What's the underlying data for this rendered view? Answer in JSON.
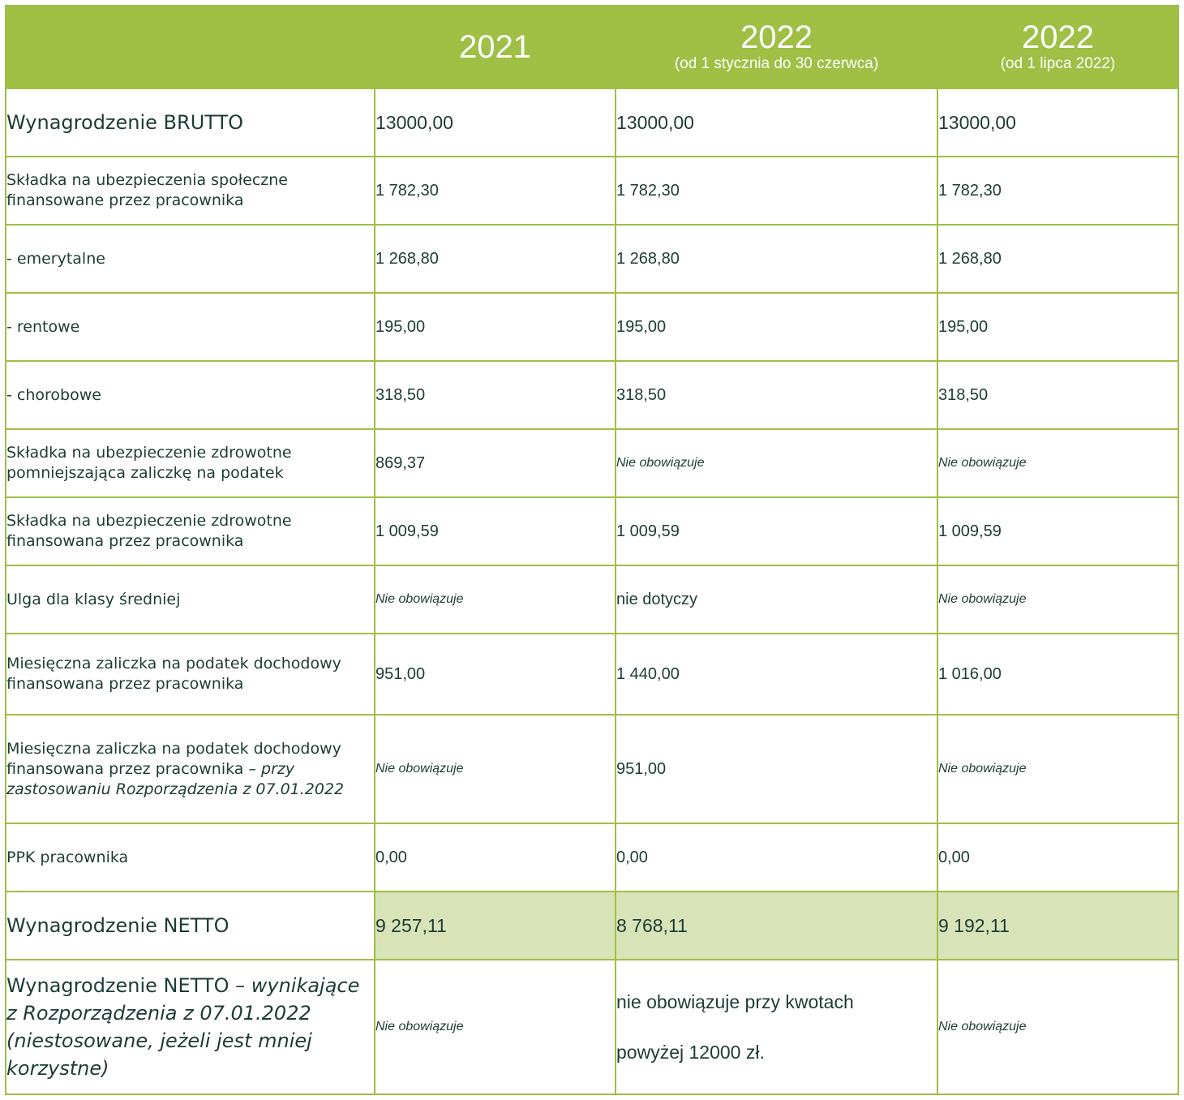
{
  "header": {
    "col1": {
      "year": "2021"
    },
    "col2": {
      "year": "2022",
      "note": "(od 1 stycznia do 30 czerwca)"
    },
    "col3": {
      "year": "2022",
      "note": "(od 1 lipca 2022)"
    }
  },
  "rows": {
    "brutto": {
      "label": "Wynagrodzenie BRUTTO",
      "v1": "13000,00",
      "v2": "13000,00",
      "v3": "13000,00"
    },
    "spoleczne": {
      "label": "Składka na ubezpieczenia społeczne finansowane przez pracownika",
      "v1": "1 782,30",
      "v2": "1 782,30",
      "v3": "1 782,30"
    },
    "emerytalne": {
      "label": "- emerytalne",
      "v1": "1 268,80",
      "v2": "1 268,80",
      "v3": "1 268,80"
    },
    "rentowe": {
      "label": "- rentowe",
      "v1": "195,00",
      "v2": "195,00",
      "v3": "195,00"
    },
    "chorobowe": {
      "label": "- chorobowe",
      "v1": "318,50",
      "v2": "318,50",
      "v3": "318,50"
    },
    "zdrowotne_pomn": {
      "label": "Składka na ubezpieczenie zdrowotne pomniejszająca zaliczkę na podatek",
      "v1": "869,37",
      "v2": "Nie obowiązuje",
      "v3": "Nie obowiązuje"
    },
    "zdrowotne_fin": {
      "label": "Składka na ubezpieczenie zdrowotne finansowana przez pracownika",
      "v1": "1 009,59",
      "v2": "1 009,59",
      "v3": "1 009,59"
    },
    "ulga": {
      "label": "Ulga dla klasy średniej",
      "v1": "Nie obowiązuje",
      "v2": "nie dotyczy",
      "v3": "Nie obowiązuje"
    },
    "zaliczka": {
      "label": "Miesięczna zaliczka na podatek dochodowy finansowana przez pracownika",
      "v1": "951,00",
      "v2": "1 440,00",
      "v3": "1 016,00"
    },
    "zaliczka_rozp": {
      "label": "Miesięczna zaliczka na podatek dochodowy finansowana przez pracownika",
      "label_note": "– przy zastosowaniu Rozporządzenia z 07.01.2022",
      "v1": "Nie obowiązuje",
      "v2": "951,00",
      "v3": "Nie obowiązuje"
    },
    "ppk": {
      "label": "PPK pracownika",
      "v1": "0,00",
      "v2": "0,00",
      "v3": "0,00"
    },
    "netto": {
      "label": "Wynagrodzenie NETTO",
      "v1": "9 257,11",
      "v2": "8 768,11",
      "v3": "9 192,11"
    },
    "netto_rozp": {
      "label": "Wynagrodzenie NETTO –",
      "label_note": "wynikające z Rozporządzenia z 07.01.2022 (niestosowane, jeżeli jest mniej korzystne)",
      "v1": "Nie obowiązuje",
      "v2_line1": "nie obowiązuje przy kwotach",
      "v2_line2": "powyżej 12000 zł.",
      "v3": "Nie obowiązuje"
    }
  }
}
